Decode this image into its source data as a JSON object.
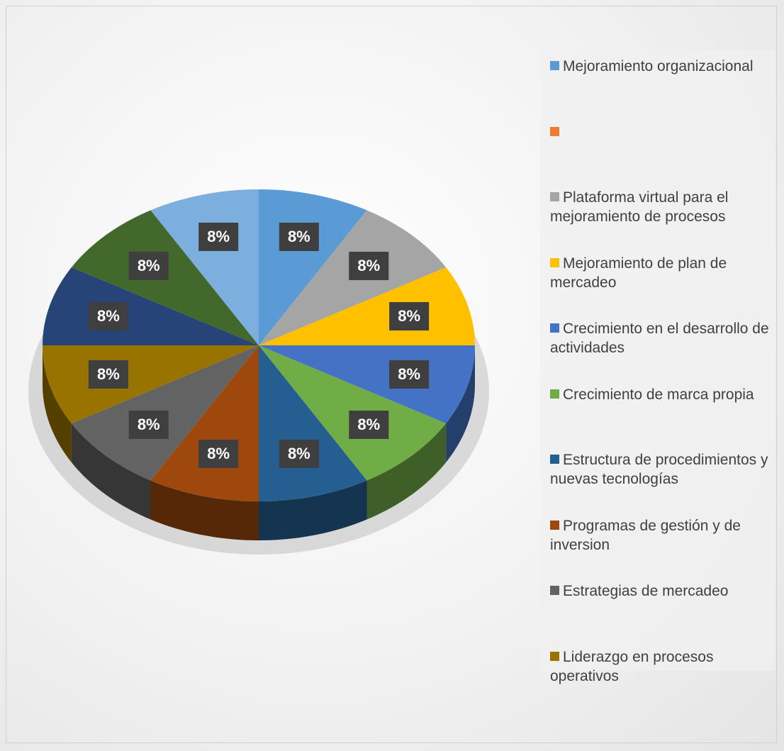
{
  "chart_data": {
    "type": "pie3d",
    "categories": [
      "Mejoramiento organizacional",
      null,
      "Plataforma virtual para el mejoramiento de procesos",
      "Mejoramiento de plan de mercadeo",
      "Crecimiento en el desarrollo de actividades",
      "Crecimiento de marca propia",
      "Estructura de procedimientos y nuevas tecnologías",
      "Programas de gestión y de inversion",
      "Estrategias de mercadeo",
      "Liderazgo en procesos operativos",
      null,
      null,
      null
    ],
    "values": [
      8,
      0,
      8,
      8,
      8,
      8,
      8,
      8,
      8,
      8,
      8,
      8,
      8
    ],
    "value_labels": [
      "8%",
      null,
      "8%",
      "8%",
      "8%",
      "8%",
      "8%",
      "8%",
      "8%",
      "8%",
      "8%",
      "8%",
      "8%"
    ],
    "colors": [
      "#5b9bd5",
      "#ed7d31",
      "#a5a5a5",
      "#ffc000",
      "#4472c4",
      "#70ad47",
      "#255e91",
      "#9e480e",
      "#636363",
      "#997300",
      "#264478",
      "#43682b",
      "#7cafdd"
    ],
    "legend": "right"
  }
}
